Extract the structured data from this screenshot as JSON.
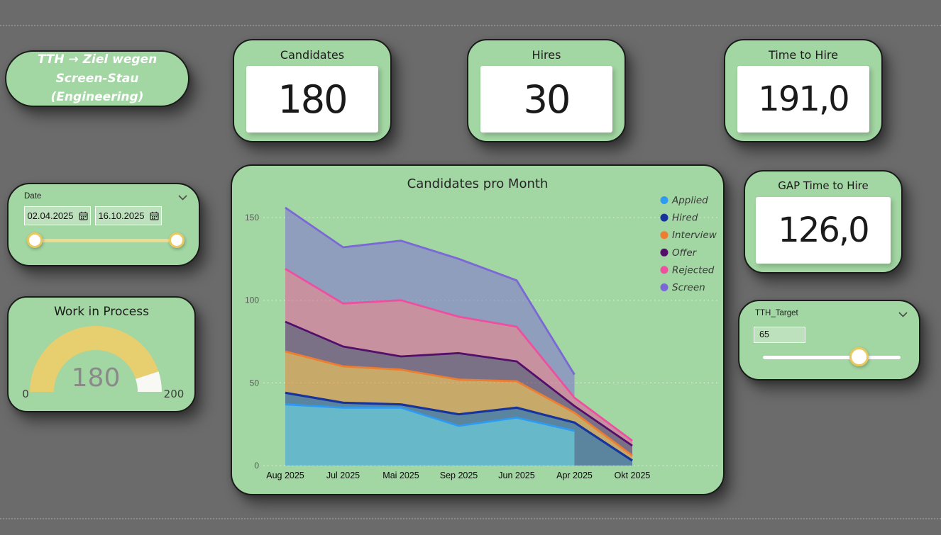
{
  "canvas": {
    "background": "#6B6B6B",
    "card_green": "#A2D6A2"
  },
  "title_card": {
    "text": "TTH  → Ziel wegen Screen-Stau (Engineering)"
  },
  "kpis": [
    {
      "title": "Candidates",
      "value": "180"
    },
    {
      "title": "Hires",
      "value": "30"
    },
    {
      "title": "Time to Hire",
      "value": "191,0"
    }
  ],
  "gap_card": {
    "title": "GAP Time to Hire",
    "value": "126,0"
  },
  "date_slicer": {
    "label": "Date",
    "start_date": "02.04.2025",
    "end_date": "16.10.2025",
    "track_color": "#F0DA92",
    "handle_ring_color": "#E9C95F"
  },
  "tth_slicer": {
    "label": "TTH_Target",
    "value": "65",
    "track_color": "#FDFDFD",
    "handle_ring_color": "#E9C95F"
  },
  "gauge": {
    "title": "Work in Process",
    "value": 180,
    "min": 0,
    "max": 200,
    "value_label": "180",
    "min_label": "0",
    "max_label": "200",
    "fill_color": "#E7CE6E",
    "rest_color": "#F8F8F5"
  },
  "chart_data": {
    "type": "area",
    "title": "Candidates pro Month",
    "categories": [
      "Aug 2025",
      "Jul 2025",
      "Mai 2025",
      "Sep 2025",
      "Jun 2025",
      "Apr 2025",
      "Okt 2025"
    ],
    "series": [
      {
        "name": "Applied",
        "color": "#2E9BF0",
        "values": [
          37,
          35,
          35,
          24,
          29,
          21,
          null
        ]
      },
      {
        "name": "Hired",
        "color": "#17349C",
        "values": [
          44,
          38,
          37,
          31,
          35,
          26,
          3
        ]
      },
      {
        "name": "Interview",
        "color": "#ED7D31",
        "values": [
          69,
          60,
          58,
          52,
          51,
          32,
          6
        ]
      },
      {
        "name": "Offer",
        "color": "#550F6B",
        "values": [
          87,
          72,
          66,
          68,
          63,
          36,
          12
        ]
      },
      {
        "name": "Rejected",
        "color": "#EE4FA0",
        "values": [
          119,
          98,
          100,
          90,
          84,
          41,
          15
        ]
      },
      {
        "name": "Screen",
        "color": "#7B68D6",
        "values": [
          156,
          132,
          136,
          125,
          112,
          55,
          null
        ]
      }
    ],
    "ylim": [
      0,
      150
    ],
    "yticks": [
      0,
      50,
      100,
      150
    ],
    "grid": "dotted-white",
    "legend_position": "right",
    "area_opacity": 0.5
  }
}
